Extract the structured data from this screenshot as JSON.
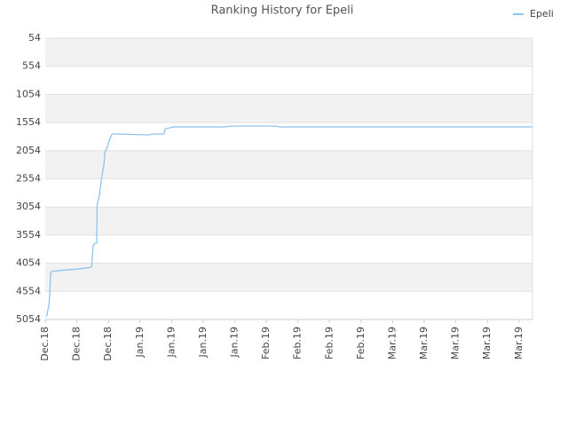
{
  "chart_data": {
    "type": "line",
    "title": "Ranking History for Epeli",
    "xlim": [
      0,
      108
    ],
    "xticks": [
      {
        "value": 0,
        "label": "Dec.18"
      },
      {
        "value": 7,
        "label": "Dec.18"
      },
      {
        "value": 14,
        "label": "Dec.18"
      },
      {
        "value": 21,
        "label": "Jan.19"
      },
      {
        "value": 28,
        "label": "Jan.19"
      },
      {
        "value": 35,
        "label": "Jan.19"
      },
      {
        "value": 42,
        "label": "Jan.19"
      },
      {
        "value": 49,
        "label": "Feb.19"
      },
      {
        "value": 56,
        "label": "Feb.19"
      },
      {
        "value": 63,
        "label": "Feb.19"
      },
      {
        "value": 70,
        "label": "Feb.19"
      },
      {
        "value": 77,
        "label": "Mar.19"
      },
      {
        "value": 84,
        "label": "Mar.19"
      },
      {
        "value": 91,
        "label": "Mar.19"
      },
      {
        "value": 98,
        "label": "Mar.19"
      },
      {
        "value": 105,
        "label": "Mar.19"
      }
    ],
    "ylim": [
      5054,
      54
    ],
    "yticks": [
      54,
      554,
      1054,
      1554,
      2054,
      2554,
      3054,
      3554,
      4054,
      4554,
      5054
    ],
    "grid": true,
    "legend": "top-right",
    "x": [
      0.3,
      0.8,
      1.0,
      1.2,
      1.5,
      3,
      5,
      7,
      9,
      10,
      10.3,
      10.6,
      11,
      11.4,
      11.5,
      12,
      12.5,
      13,
      13.2,
      13.8,
      14.2,
      14.8,
      15.5,
      23,
      24,
      26.3,
      26.6,
      28.5,
      40,
      41,
      51,
      52,
      108
    ],
    "series": [
      {
        "name": "Epeli",
        "color": "#8ec3ee",
        "values": [
          5000,
          4800,
          4600,
          4217,
          4200,
          4186,
          4170,
          4160,
          4138,
          4130,
          4107,
          3744,
          3700,
          3697,
          3019,
          2850,
          2530,
          2300,
          2088,
          1978,
          1868,
          1757,
          1757,
          1773,
          1757,
          1757,
          1665,
          1631,
          1631,
          1615,
          1615,
          1631,
          1631
        ]
      }
    ]
  }
}
